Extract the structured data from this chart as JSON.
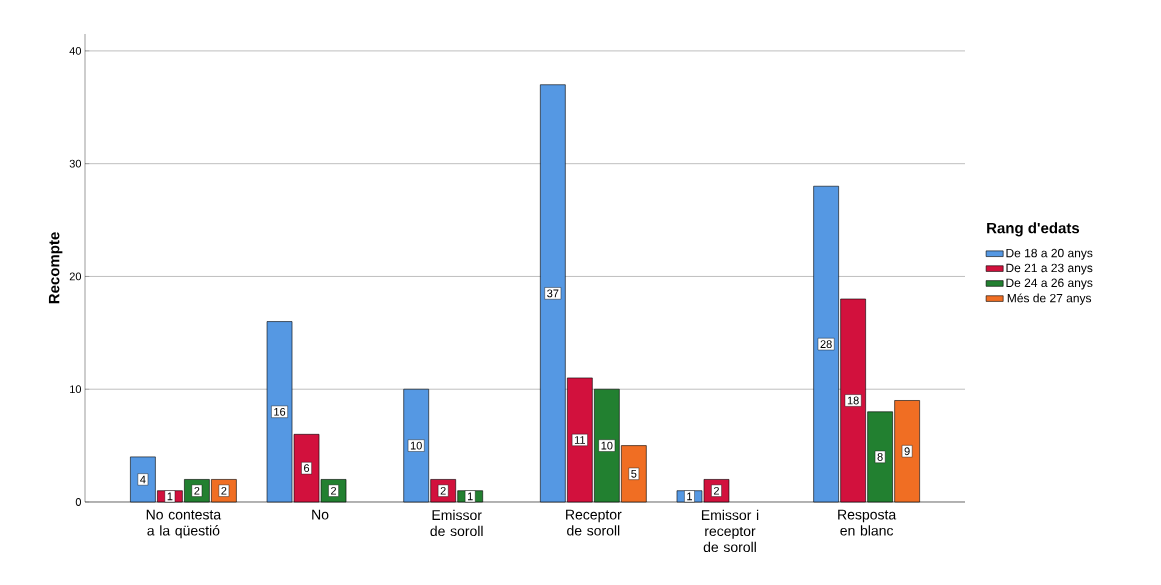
{
  "chart_data": {
    "type": "bar",
    "ylabel": "Recompte",
    "legend_title": "Rang d'edats",
    "categories": [
      "No contesta a la qüestió",
      "No",
      "Emissor de soroll",
      "Receptor de soroll",
      "Emissor i receptor de soroll",
      "Resposta en blanc"
    ],
    "series": [
      {
        "name": "De 18 a 20 anys",
        "color": "#5598e3",
        "values": [
          4,
          16,
          10,
          37,
          1,
          28
        ]
      },
      {
        "name": "De 21 a 23 anys",
        "color": "#d2113d",
        "values": [
          1,
          6,
          2,
          11,
          2,
          18
        ]
      },
      {
        "name": "De 24 a 26 anys",
        "color": "#228030",
        "values": [
          2,
          2,
          1,
          10,
          null,
          8
        ]
      },
      {
        "name": "Més de 27 anys",
        "color": "#f06e23",
        "values": [
          2,
          null,
          null,
          5,
          null,
          9
        ]
      }
    ],
    "ylim": [
      0,
      41.5
    ],
    "yticks": [
      0,
      10,
      20,
      30,
      40
    ],
    "grid": "y",
    "legend": "right",
    "data_labels": true
  }
}
